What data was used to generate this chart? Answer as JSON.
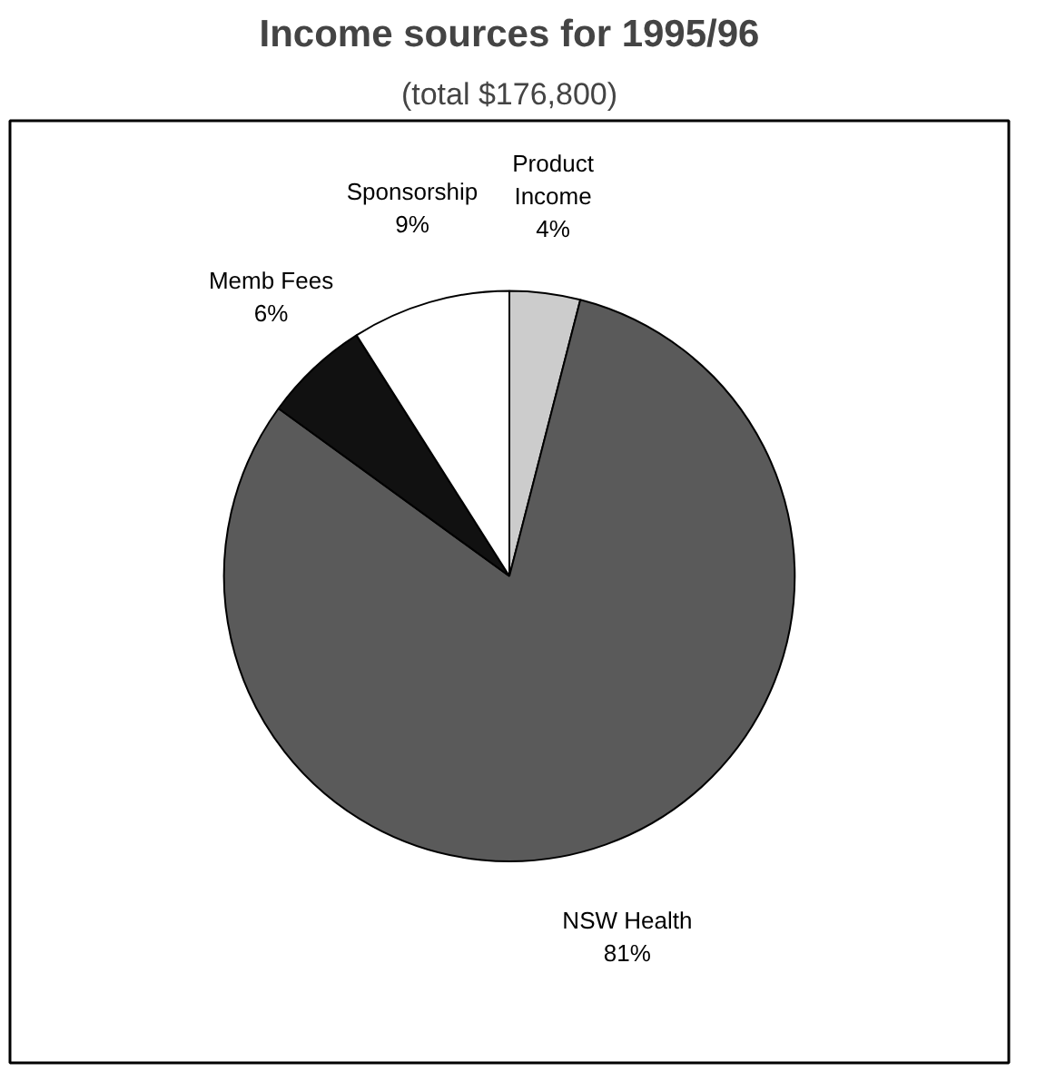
{
  "chart_data": {
    "type": "pie",
    "title": "Income sources for 1995/96",
    "subtitle": "(total $176,800)",
    "categories": [
      "Product Income",
      "NSW Health",
      "Memb Fees",
      "Sponsorship"
    ],
    "values": [
      4,
      81,
      6,
      9
    ],
    "colors": [
      "#cccccc",
      "#5a5a5a",
      "#111111",
      "#ffffff"
    ],
    "value_labels": [
      "4%",
      "81%",
      "6%",
      "9%"
    ]
  }
}
